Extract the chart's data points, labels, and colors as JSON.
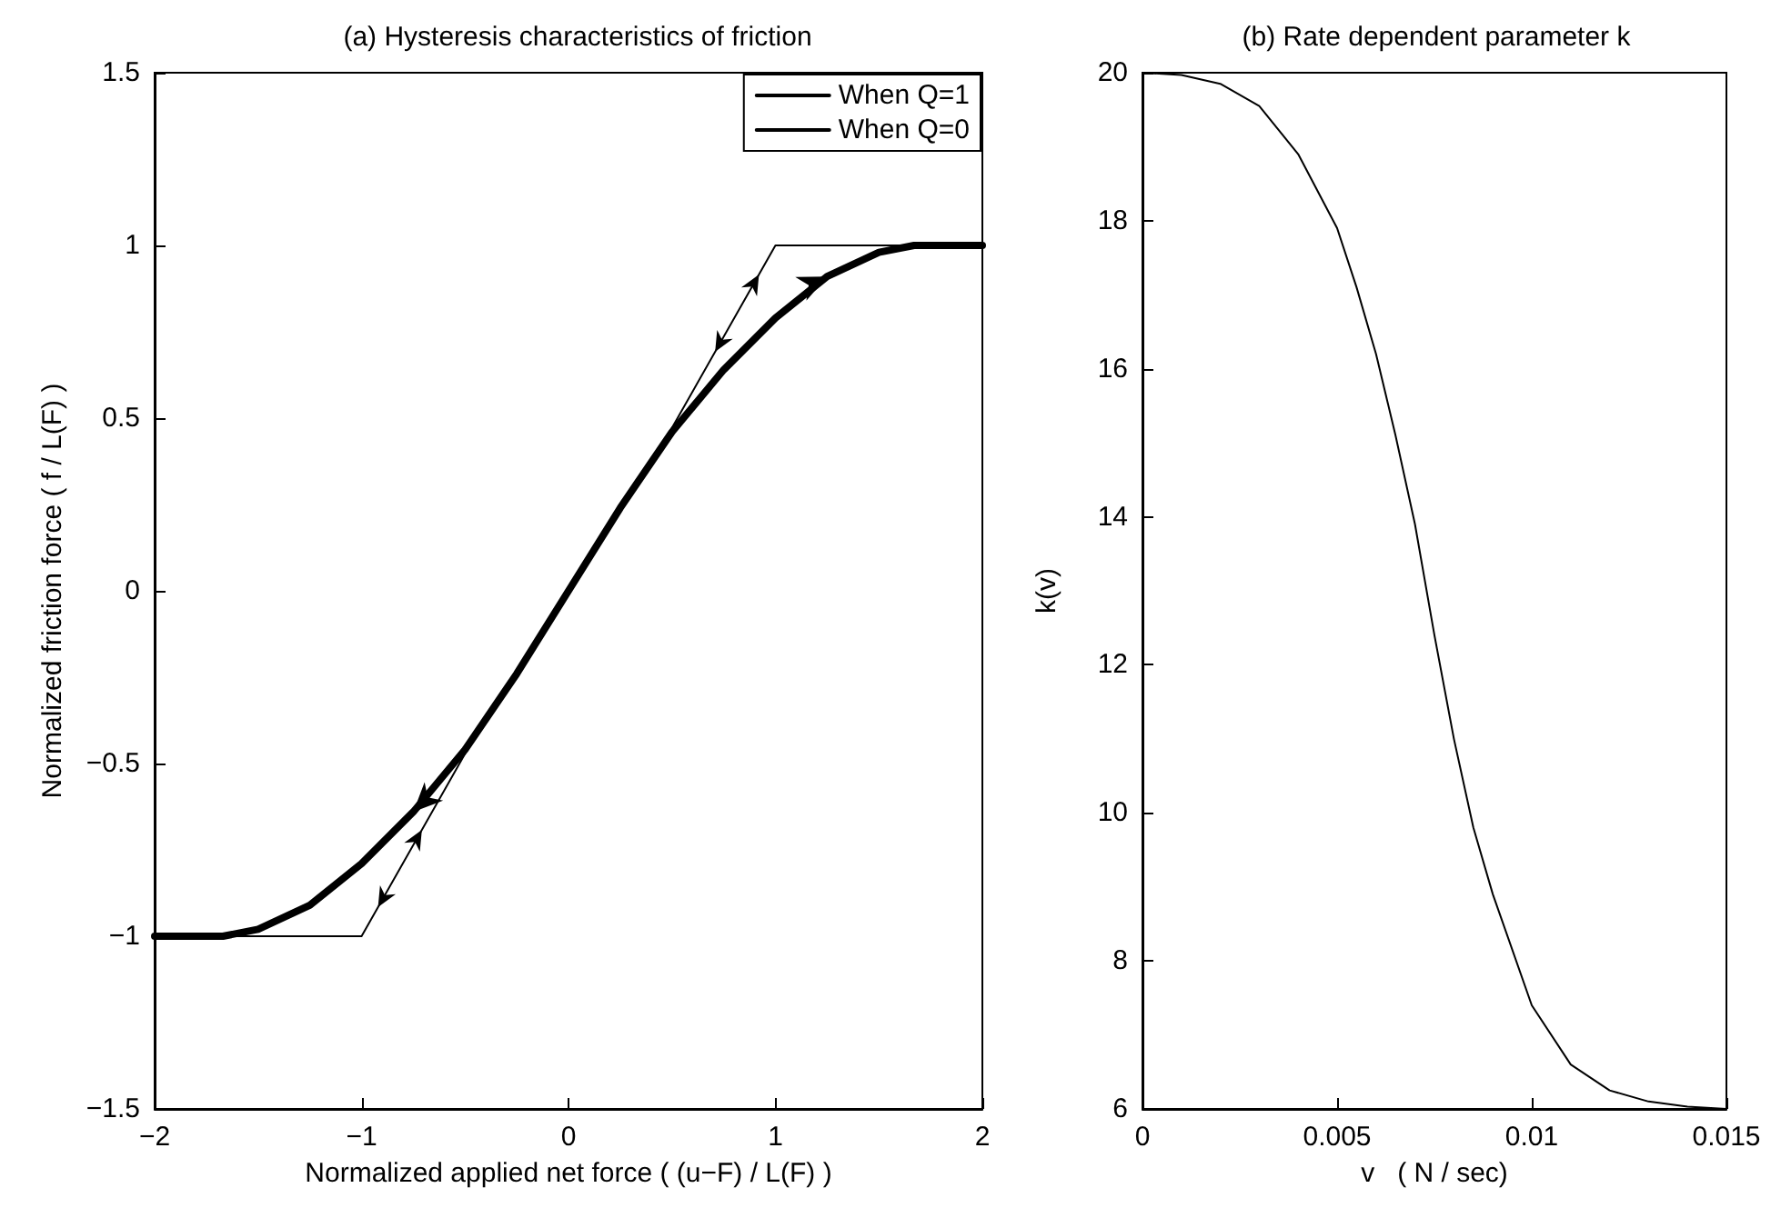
{
  "chart_data": [
    {
      "type": "line",
      "title": "(a) Hysteresis characteristics of friction",
      "xlabel": "Normalized applied net force ( (u−F) / L(F) )",
      "ylabel": "Normalized friction force ( f / L(F) )",
      "legend": "top right",
      "grid": false,
      "series": [
        {
          "name": "When Q=1",
          "color": "#000000",
          "x": [
            -2,
            -1.67,
            -1.5,
            -1.25,
            -1,
            -0.75,
            -0.5,
            -0.25,
            0,
            0.25,
            0.5,
            0.75,
            1,
            1.25,
            1.5,
            1.67,
            2
          ],
          "values": [
            -1,
            -1,
            -0.98,
            -0.91,
            -0.79,
            -0.64,
            -0.46,
            -0.24,
            0,
            0.24,
            0.46,
            0.64,
            0.79,
            0.91,
            0.98,
            1,
            1
          ]
        },
        {
          "name": "When Q=0",
          "color": "#000000",
          "x": [
            -2,
            -1,
            -0.47,
            -0.25,
            0,
            0.25,
            0.47,
            1,
            2
          ],
          "values": [
            -1,
            -1,
            -0.44,
            -0.24,
            0,
            0.24,
            0.44,
            1,
            1
          ]
        }
      ],
      "xlim": [
        -2,
        2
      ],
      "xticks": [
        -2,
        -1,
        0,
        1,
        2
      ],
      "ylim": [
        -1.5,
        1.5
      ],
      "yticks": [
        -1.5,
        -1,
        -0.5,
        0,
        0.5,
        1,
        1.5
      ]
    },
    {
      "type": "line",
      "title": "(b) Rate dependent parameter k",
      "xlabel": "v   ( N / sec)",
      "ylabel": "k(v)",
      "grid": false,
      "series": [
        {
          "color": "#000000",
          "x": [
            0,
            0.001,
            0.002,
            0.003,
            0.004,
            0.005,
            0.0055,
            0.006,
            0.0065,
            0.007,
            0.0075,
            0.008,
            0.0085,
            0.009,
            0.01,
            0.011,
            0.012,
            0.013,
            0.014,
            0.015
          ],
          "values": [
            20,
            19.97,
            19.85,
            19.55,
            18.9,
            17.9,
            17.1,
            16.2,
            15.1,
            13.9,
            12.4,
            11,
            9.8,
            8.9,
            7.4,
            6.6,
            6.25,
            6.1,
            6.03,
            6
          ]
        }
      ],
      "xlim": [
        0,
        0.015
      ],
      "xticks": [
        0,
        0.005,
        0.01,
        0.015
      ],
      "ylim": [
        6,
        20
      ],
      "yticks": [
        6,
        8,
        10,
        12,
        14,
        16,
        18,
        20
      ]
    }
  ]
}
